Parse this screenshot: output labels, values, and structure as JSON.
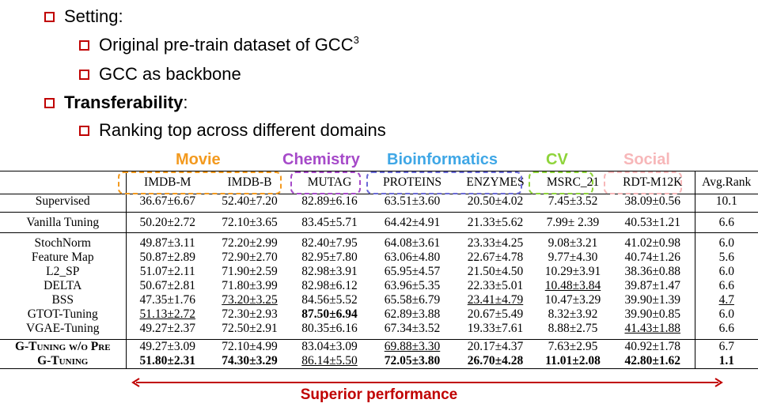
{
  "bullets": [
    {
      "text": "Setting:",
      "level": 1,
      "bold": false
    },
    {
      "text": "Original pre-train dataset of GCC",
      "sup": "3",
      "level": 2
    },
    {
      "text": "GCC as backbone",
      "level": 2
    },
    {
      "text": "Transferability",
      "suffix": ":",
      "level": 1,
      "bold": true
    },
    {
      "text": "Ranking top across different domains",
      "level": 2
    }
  ],
  "domains": [
    {
      "label": "Movie",
      "color": "#f39a1f"
    },
    {
      "label": "Chemistry",
      "color": "#a64ac9"
    },
    {
      "label": "Bioinformatics",
      "color": "#3fa7e6"
    },
    {
      "label": "CV",
      "color": "#8ed43a"
    },
    {
      "label": "Social",
      "color": "#f7b7b9"
    }
  ],
  "table": {
    "columns": [
      "IMDB-M",
      "IMDB-B",
      "MUTAG",
      "PROTEINS",
      "ENZYMES",
      "MSRC_21",
      "RDT-M12K",
      "Avg.Rank"
    ],
    "rows": [
      {
        "method": "Supervised",
        "cells": [
          "36.67±6.67",
          "52.40±7.20",
          "82.89±6.16",
          "63.51±3.60",
          "20.50±4.02",
          "7.45±3.52",
          "38.09±0.56",
          "10.1"
        ]
      },
      {
        "method": "Vanilla Tuning",
        "cells": [
          "50.20±2.72",
          "72.10±3.65",
          "83.45±5.71",
          "64.42±4.91",
          "21.33±5.62",
          "7.99± 2.39",
          "40.53±1.21",
          "6.6"
        ]
      },
      {
        "method": "StochNorm",
        "cells": [
          "49.87±3.11",
          "72.20±2.99",
          "82.40±7.95",
          "64.08±3.61",
          "23.33±4.25",
          "9.08±3.21",
          "41.02±0.98",
          "6.0"
        ]
      },
      {
        "method": "Feature Map",
        "cells": [
          "50.87±2.89",
          "72.90±2.70",
          "82.95±7.80",
          "63.06±4.80",
          "22.67±4.78",
          "9.77±4.30",
          "40.74±1.26",
          "5.6"
        ]
      },
      {
        "method": "L2_SP",
        "cells": [
          "51.07±2.11",
          "71.90±2.59",
          "82.98±3.91",
          "65.95±4.57",
          "21.50±4.50",
          "10.29±3.91",
          "38.36±0.88",
          "6.0"
        ]
      },
      {
        "method": "DELTA",
        "cells": [
          "50.67±2.81",
          "71.80±3.99",
          "82.98±6.12",
          "63.96±5.35",
          "22.33±5.01",
          "10.48±3.84",
          "39.87±1.47",
          "6.6"
        ]
      },
      {
        "method": "BSS",
        "cells": [
          "47.35±1.76",
          "73.20±3.25",
          "84.56±5.52",
          "65.58±6.79",
          "23.41±4.79",
          "10.47±3.29",
          "39.90±1.39",
          "4.7"
        ]
      },
      {
        "method": "GTOT-Tuning",
        "cells": [
          "51.13±2.72",
          "72.30±2.93",
          "87.50±6.94",
          "62.89±3.88",
          "20.67±5.49",
          "8.32±3.92",
          "39.90±0.85",
          "6.0"
        ]
      },
      {
        "method": "VGAE-Tuning",
        "cells": [
          "49.27±2.37",
          "72.50±2.91",
          "80.35±6.16",
          "67.34±3.52",
          "19.33±7.61",
          "8.88±2.75",
          "41.43±1.88",
          "6.6"
        ]
      },
      {
        "method": "G-Tuning w/o Pre",
        "cells": [
          "49.27±3.09",
          "72.10±4.99",
          "83.04±3.09",
          "69.88±3.30",
          "20.17±4.37",
          "7.63±2.95",
          "40.92±1.78",
          "6.7"
        ]
      },
      {
        "method": "G-Tuning",
        "cells": [
          "51.80±2.31",
          "74.30±3.29",
          "86.14±5.50",
          "72.05±3.80",
          "26.70±4.28",
          "11.01±2.08",
          "42.80±1.62",
          "1.1"
        ]
      }
    ]
  },
  "footer": {
    "label": "Superior performance",
    "color": "#c00000"
  }
}
